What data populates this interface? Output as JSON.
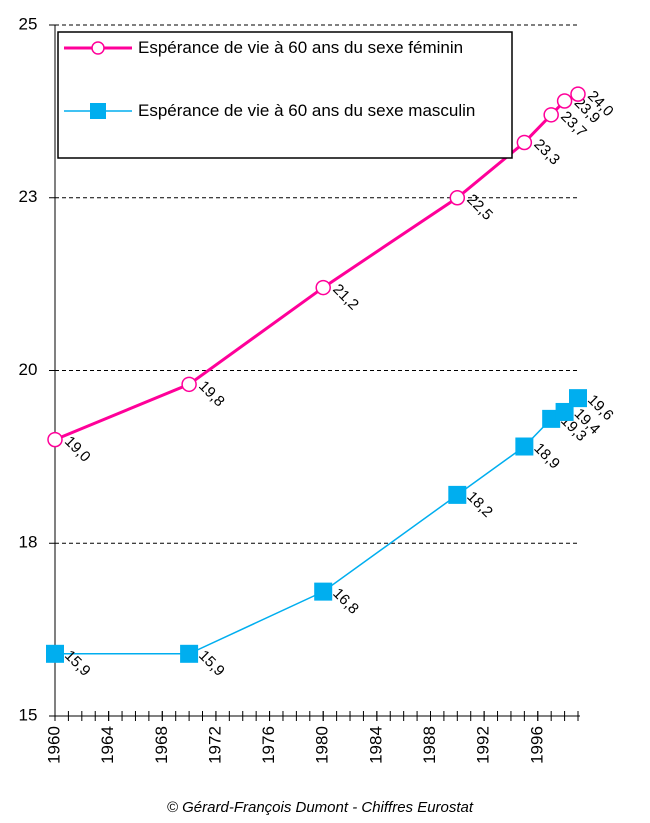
{
  "chart_data": {
    "type": "line",
    "x": [
      1960,
      1970,
      1980,
      1990,
      1995,
      1997,
      1998,
      1999
    ],
    "series": [
      {
        "name": "Espérance de vie à 60 ans du sexe féminin",
        "color": "#ff0099",
        "marker": "circle",
        "values": [
          19.0,
          19.8,
          21.2,
          22.5,
          23.3,
          23.7,
          23.9,
          24.0
        ],
        "value_labels": [
          "19,0",
          "19,8",
          "21,2",
          "22,5",
          "23,3",
          "23,7",
          "23,9",
          "24,0"
        ]
      },
      {
        "name": "Espérance de vie à 60 ans du sexe masculin",
        "color": "#00aeef",
        "marker": "square",
        "values": [
          15.9,
          15.9,
          16.8,
          18.2,
          18.9,
          19.3,
          19.4,
          19.6
        ],
        "value_labels": [
          "15,9",
          "15,9",
          "16,8",
          "18,2",
          "18,9",
          "19,3",
          "19,4",
          "19,6"
        ]
      }
    ],
    "xlim": [
      1960,
      1999
    ],
    "xticks": [
      1960,
      1964,
      1968,
      1972,
      1976,
      1980,
      1984,
      1988,
      1992,
      1996
    ],
    "xticks_minor": [
      1960,
      1961,
      1962,
      1963,
      1964,
      1965,
      1966,
      1967,
      1968,
      1969,
      1970,
      1971,
      1972,
      1973,
      1974,
      1975,
      1976,
      1977,
      1978,
      1979,
      1980,
      1981,
      1982,
      1983,
      1984,
      1985,
      1986,
      1987,
      1988,
      1989,
      1990,
      1991,
      1992,
      1993,
      1994,
      1995,
      1996,
      1997,
      1998,
      1999
    ],
    "ylim": [
      15,
      25
    ],
    "yticks": [
      15,
      {
        "value": 17.5,
        "label": "18"
      },
      20,
      {
        "value": 22.5,
        "label": "23"
      },
      25
    ],
    "grid": true,
    "legend": "top-left",
    "source": "© Gérard-François Dumont - Chiffres Eurostat"
  }
}
